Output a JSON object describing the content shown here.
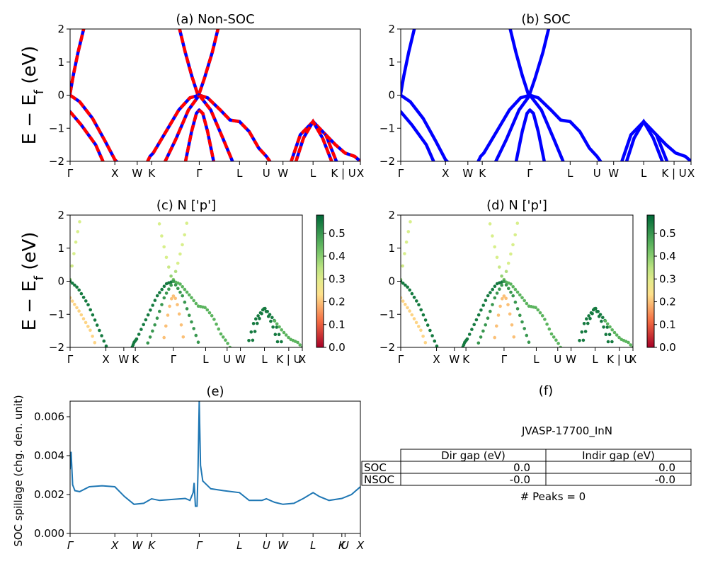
{
  "figure": {
    "material": "JVASP-17700_InN",
    "peaks_text": "# Peaks = 0"
  },
  "chart_data": [
    {
      "id": "a",
      "type": "line",
      "title": "(a) Non-SOC",
      "ylabel": "E − E_f (eV)",
      "ylim": [
        -2,
        2
      ],
      "yticks": [
        "2",
        "1",
        "0",
        "−1",
        "−2"
      ],
      "xlim": [
        0,
        9.08
      ],
      "xticks": [
        {
          "label": "Γ",
          "x": 0
        },
        {
          "label": "X",
          "x": 1.4
        },
        {
          "label": "W",
          "x": 2.1
        },
        {
          "label": "K",
          "x": 2.55
        },
        {
          "label": "Γ",
          "x": 4.04
        },
        {
          "label": "L",
          "x": 5.3
        },
        {
          "label": "U",
          "x": 6.14
        },
        {
          "label": "W",
          "x": 6.66
        },
        {
          "label": "L",
          "x": 7.6
        },
        {
          "label": "K | U",
          "x": 8.55
        },
        {
          "label": "X",
          "x": 9.08
        }
      ],
      "series": [
        {
          "name": "cond1",
          "values": [
            [
              0,
              0.05
            ],
            [
              0.1,
              0.6
            ],
            [
              0.25,
              1.3
            ],
            [
              0.45,
              2.1
            ]
          ]
        },
        {
          "name": "val1",
          "values": [
            [
              0,
              0
            ],
            [
              0.3,
              -0.2
            ],
            [
              0.7,
              -0.7
            ],
            [
              1.1,
              -1.4
            ],
            [
              1.4,
              -1.95
            ],
            [
              1.5,
              -2.05
            ]
          ]
        },
        {
          "name": "val2",
          "values": [
            [
              0,
              -0.5
            ],
            [
              0.35,
              -0.9
            ],
            [
              0.8,
              -1.5
            ],
            [
              1.05,
              -2.05
            ]
          ]
        },
        {
          "name": "valK",
          "values": [
            [
              2.4,
              -2.05
            ],
            [
              2.5,
              -1.85
            ],
            [
              2.6,
              -1.75
            ]
          ]
        },
        {
          "name": "gammaUp1",
          "values": [
            [
              3.4,
              2.1
            ],
            [
              3.6,
              1.3
            ],
            [
              3.8,
              0.6
            ],
            [
              4.0,
              0.0
            ],
            [
              4.04,
              0.05
            ]
          ]
        },
        {
          "name": "gammaUp2",
          "values": [
            [
              4.04,
              0.05
            ],
            [
              4.2,
              0.5
            ],
            [
              4.45,
              1.3
            ],
            [
              4.65,
              2.1
            ]
          ]
        },
        {
          "name": "gammaTopL",
          "values": [
            [
              2.6,
              -1.75
            ],
            [
              3.0,
              -1.1
            ],
            [
              3.4,
              -0.45
            ],
            [
              3.75,
              -0.08
            ],
            [
              4.04,
              0
            ]
          ]
        },
        {
          "name": "gammaTopR",
          "values": [
            [
              4.04,
              0
            ],
            [
              4.3,
              -0.08
            ],
            [
              4.7,
              -0.45
            ],
            [
              5.0,
              -0.75
            ],
            [
              5.3,
              -0.8
            ],
            [
              5.6,
              -1.1
            ],
            [
              5.9,
              -1.6
            ],
            [
              6.14,
              -1.85
            ],
            [
              6.25,
              -2.0
            ]
          ]
        },
        {
          "name": "gammaMidL",
          "values": [
            [
              2.95,
              -2.05
            ],
            [
              3.3,
              -1.35
            ],
            [
              3.7,
              -0.45
            ],
            [
              4.04,
              0
            ]
          ]
        },
        {
          "name": "gammaMidR",
          "values": [
            [
              4.04,
              0
            ],
            [
              4.4,
              -0.45
            ],
            [
              4.8,
              -1.35
            ],
            [
              5.1,
              -2.05
            ]
          ]
        },
        {
          "name": "gammaLowL",
          "values": [
            [
              3.6,
              -2.05
            ],
            [
              3.8,
              -1.1
            ],
            [
              3.95,
              -0.55
            ],
            [
              4.04,
              -0.45
            ]
          ]
        },
        {
          "name": "gammaLowR",
          "values": [
            [
              4.04,
              -0.45
            ],
            [
              4.15,
              -0.55
            ],
            [
              4.3,
              -1.1
            ],
            [
              4.5,
              -2.05
            ]
          ]
        },
        {
          "name": "lPeak1",
          "values": [
            [
              6.9,
              -2.05
            ],
            [
              7.2,
              -1.2
            ],
            [
              7.6,
              -0.8
            ],
            [
              8.0,
              -1.2
            ],
            [
              8.35,
              -2.05
            ]
          ]
        },
        {
          "name": "lPeak2",
          "values": [
            [
              7.05,
              -2.05
            ],
            [
              7.3,
              -1.3
            ],
            [
              7.6,
              -0.8
            ],
            [
              7.9,
              -1.3
            ],
            [
              8.2,
              -2.05
            ]
          ]
        },
        {
          "name": "kTail",
          "values": [
            [
              8.0,
              -1.2
            ],
            [
              8.3,
              -1.5
            ],
            [
              8.6,
              -1.75
            ],
            [
              8.9,
              -1.85
            ],
            [
              9.08,
              -2.0
            ]
          ]
        }
      ]
    },
    {
      "id": "b",
      "type": "line",
      "title": "(b) SOC",
      "xlim": [
        0,
        9.08
      ],
      "ylim": [
        -2,
        2
      ],
      "yticks": [
        "2",
        "1",
        "0",
        "−1",
        "−2"
      ],
      "xticks": [
        {
          "label": "Γ",
          "x": 0
        },
        {
          "label": "X",
          "x": 1.4
        },
        {
          "label": "W",
          "x": 2.1
        },
        {
          "label": "K",
          "x": 2.55
        },
        {
          "label": "Γ",
          "x": 4.04
        },
        {
          "label": "L",
          "x": 5.3
        },
        {
          "label": "U",
          "x": 6.14
        },
        {
          "label": "W",
          "x": 6.66
        },
        {
          "label": "L",
          "x": 7.6
        },
        {
          "label": "K | U",
          "x": 8.55
        },
        {
          "label": "X",
          "x": 9.08
        }
      ]
    },
    {
      "id": "c",
      "type": "scatter",
      "title": "(c)  N ['p']",
      "ylabel": "E − E_f (eV)",
      "xlim": [
        0,
        9.08
      ],
      "ylim": [
        -2,
        2
      ],
      "yticks": [
        "2",
        "1",
        "0",
        "−1",
        "−2"
      ],
      "xticks": [
        {
          "label": "Γ",
          "x": 0
        },
        {
          "label": "X",
          "x": 1.4
        },
        {
          "label": "W",
          "x": 2.1
        },
        {
          "label": "K",
          "x": 2.55
        },
        {
          "label": "Γ",
          "x": 4.04
        },
        {
          "label": "L",
          "x": 5.3
        },
        {
          "label": "U",
          "x": 6.14
        },
        {
          "label": "W",
          "x": 6.66
        },
        {
          "label": "L",
          "x": 7.6
        },
        {
          "label": "K | U",
          "x": 8.55
        },
        {
          "label": "X",
          "x": 9.08
        }
      ],
      "colorbar": {
        "min": 0.0,
        "max": 0.58,
        "ticks": [
          "0.5",
          "0.4",
          "0.3",
          "0.2",
          "0.1",
          "0.0"
        ]
      }
    },
    {
      "id": "d",
      "type": "scatter",
      "title": "(d) N ['p']",
      "xlim": [
        0,
        9.08
      ],
      "ylim": [
        -2,
        2
      ],
      "yticks": [
        "2",
        "1",
        "0",
        "−1",
        "−2"
      ],
      "xticks": [
        {
          "label": "Γ",
          "x": 0
        },
        {
          "label": "X",
          "x": 1.4
        },
        {
          "label": "W",
          "x": 2.1
        },
        {
          "label": "K",
          "x": 2.55
        },
        {
          "label": "Γ",
          "x": 4.04
        },
        {
          "label": "L",
          "x": 5.3
        },
        {
          "label": "U",
          "x": 6.14
        },
        {
          "label": "W",
          "x": 6.66
        },
        {
          "label": "L",
          "x": 7.6
        },
        {
          "label": "K | U",
          "x": 8.55
        },
        {
          "label": "X",
          "x": 9.08
        }
      ],
      "colorbar": {
        "min": 0.0,
        "max": 0.58,
        "ticks": [
          "0.5",
          "0.4",
          "0.3",
          "0.2",
          "0.1",
          "0.0"
        ]
      }
    },
    {
      "id": "e",
      "type": "line",
      "title": "(e)",
      "ylabel": "SOC spillage (chg. den. unit)",
      "xlim": [
        0,
        9.08
      ],
      "ylim": [
        0,
        0.0068
      ],
      "yticks": [
        "0.006",
        "0.004",
        "0.002",
        "0.000"
      ],
      "xticks": [
        {
          "label": "Γ",
          "x": 0
        },
        {
          "label": "X",
          "x": 1.4
        },
        {
          "label": "W",
          "x": 2.1
        },
        {
          "label": "K",
          "x": 2.55
        },
        {
          "label": "Γ",
          "x": 4.04
        },
        {
          "label": "L",
          "x": 5.3
        },
        {
          "label": "U",
          "x": 6.14
        },
        {
          "label": "W",
          "x": 6.66
        },
        {
          "label": "L",
          "x": 7.6
        },
        {
          "label": "K",
          "x": 8.5
        },
        {
          "label": "U",
          "x": 8.6
        },
        {
          "label": "X",
          "x": 9.08
        }
      ],
      "values": [
        [
          0,
          0.0033
        ],
        [
          0.03,
          0.0042
        ],
        [
          0.08,
          0.0025
        ],
        [
          0.15,
          0.0022
        ],
        [
          0.3,
          0.00215
        ],
        [
          0.6,
          0.0024
        ],
        [
          1.0,
          0.00245
        ],
        [
          1.4,
          0.0024
        ],
        [
          1.7,
          0.0019
        ],
        [
          2.0,
          0.0015
        ],
        [
          2.3,
          0.00155
        ],
        [
          2.55,
          0.00178
        ],
        [
          2.8,
          0.0017
        ],
        [
          3.2,
          0.00175
        ],
        [
          3.6,
          0.0018
        ],
        [
          3.75,
          0.0017
        ],
        [
          3.85,
          0.0021
        ],
        [
          3.88,
          0.0026
        ],
        [
          3.92,
          0.0014
        ],
        [
          3.97,
          0.0014
        ],
        [
          4.0,
          0.0031
        ],
        [
          4.04,
          0.0068
        ],
        [
          4.08,
          0.0035
        ],
        [
          4.15,
          0.0027
        ],
        [
          4.4,
          0.0023
        ],
        [
          4.8,
          0.0022
        ],
        [
          5.3,
          0.0021
        ],
        [
          5.6,
          0.0017
        ],
        [
          6.0,
          0.0017
        ],
        [
          6.14,
          0.00178
        ],
        [
          6.4,
          0.0016
        ],
        [
          6.66,
          0.0015
        ],
        [
          7.0,
          0.00155
        ],
        [
          7.3,
          0.0018
        ],
        [
          7.6,
          0.0021
        ],
        [
          7.8,
          0.0019
        ],
        [
          8.1,
          0.0017
        ],
        [
          8.5,
          0.0018
        ],
        [
          8.8,
          0.002
        ],
        [
          9.08,
          0.0024
        ]
      ]
    },
    {
      "id": "f",
      "type": "table",
      "title": "(f)",
      "columns": [
        "Dir gap (eV)",
        "Indir gap (eV)"
      ],
      "rows": [
        {
          "label": "SOC",
          "cells": [
            "0.0",
            "0.0"
          ]
        },
        {
          "label": "NSOC",
          "cells": [
            "-0.0",
            "-0.0"
          ]
        }
      ]
    }
  ]
}
